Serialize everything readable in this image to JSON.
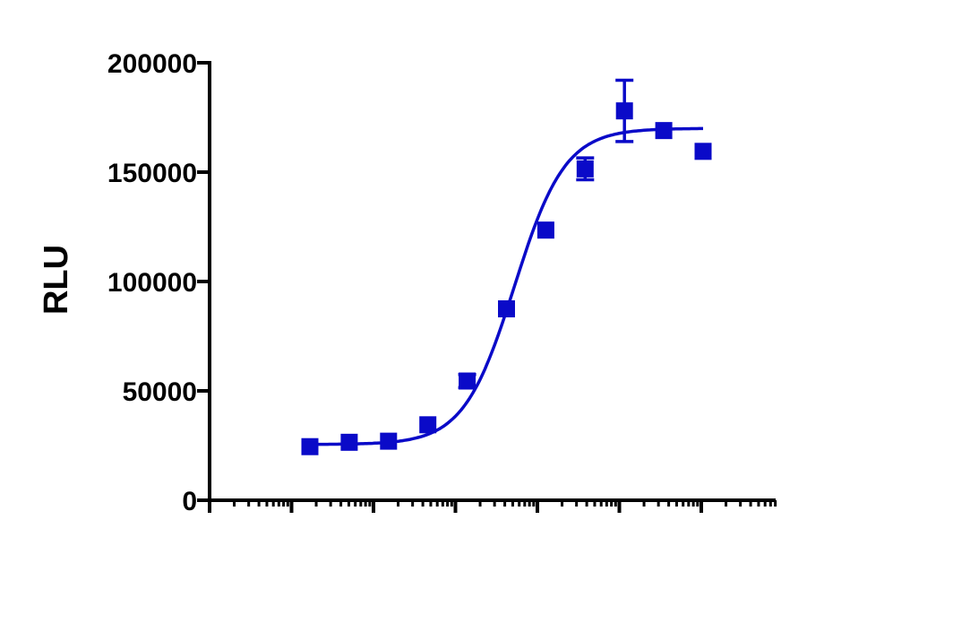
{
  "chart_data": {
    "type": "scatter",
    "title": "",
    "xlabel": "",
    "ylabel": "RLU",
    "x_scale": "log",
    "x_tick_labels_shown": false,
    "ylim": [
      0,
      200000
    ],
    "y_ticks": [
      0,
      50000,
      100000,
      150000,
      200000
    ],
    "y_tick_labels": [
      "0",
      "50000",
      "100000",
      "150000",
      "200000"
    ],
    "grid": false,
    "legend": "none",
    "color": "#0a0ac8",
    "marker": "square",
    "series": [
      {
        "points": [
          {
            "i": 0,
            "y": 24500,
            "err": 0
          },
          {
            "i": 1,
            "y": 26500,
            "err": 0
          },
          {
            "i": 2,
            "y": 27000,
            "err": 0
          },
          {
            "i": 3,
            "y": 34500,
            "err": 0
          },
          {
            "i": 4,
            "y": 54500,
            "err": 3000
          },
          {
            "i": 5,
            "y": 87500,
            "err": 0
          },
          {
            "i": 6,
            "y": 123500,
            "err": 0
          },
          {
            "i": 7,
            "y": 151500,
            "err": 5000
          },
          {
            "i": 8,
            "y": 178000,
            "err": 14000
          },
          {
            "i": 9,
            "y": 169000,
            "err": 0
          },
          {
            "i": 10,
            "y": 159500,
            "err": 0
          }
        ]
      }
    ],
    "fit_curve": {
      "model": "sigmoid",
      "bottom": 25500,
      "top": 170000,
      "mid_i": 5.2,
      "slope_per_i": 1.55
    }
  }
}
